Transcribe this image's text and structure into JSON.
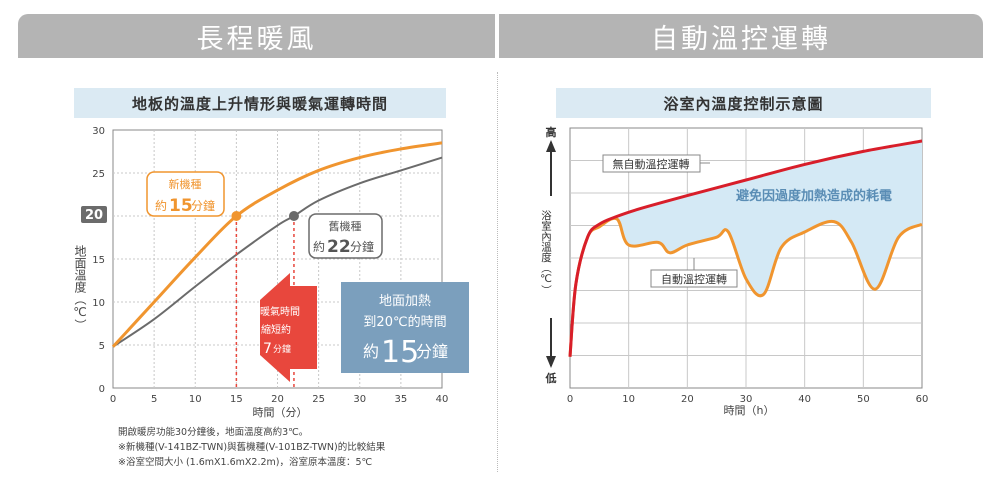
{
  "headers": {
    "left": "長程暖風",
    "right": "自動溫控運轉"
  },
  "left_chart": {
    "title": "地板的溫度上升情形與暖氣運轉時間",
    "ylabel": "地面溫度（℃）",
    "xlabel": "時間（分）",
    "x_ticks": [
      "0",
      "5",
      "10",
      "15",
      "20",
      "25",
      "30",
      "35",
      "40"
    ],
    "y_ticks": [
      "0",
      "5",
      "10",
      "15",
      "20",
      "25",
      "30"
    ],
    "highlight_tick": "20",
    "new_label_line1": "新機種",
    "new_label_prefix": "約",
    "new_label_number": "15",
    "new_label_suffix": "分鐘",
    "old_label_line1": "舊機種",
    "old_label_prefix": "約",
    "old_label_number": "22",
    "old_label_suffix": "分鐘",
    "arrow_line1": "暖氣時間",
    "arrow_line2": "縮短約",
    "arrow_number": "7",
    "arrow_unit": "分鐘",
    "box_line1": "地面加熱",
    "box_line2": "到20℃的時間",
    "box_prefix": "約",
    "box_number": "15",
    "box_suffix": "分鐘"
  },
  "right_chart": {
    "title": "浴室內溫度控制示意圖",
    "ylabel": "浴室內溫度（℃）",
    "y_high": "高",
    "y_low": "低",
    "xlabel": "時間（h）",
    "x_ticks": [
      "0",
      "10",
      "20",
      "30",
      "40",
      "50",
      "60"
    ],
    "label_no_control": "無自動溫控運轉",
    "label_auto": "自動溫控運轉",
    "label_saving": "避免因過度加熱造成的耗電"
  },
  "footnotes": [
    "開啟暖房功能30分鐘後，地面溫度高約3℃。",
    "※新機種(V-141BZ-TWN)與舊機種(V-101BZ-TWN)的比較結果",
    "※浴室空間大小 (1.6mX1.6mX2.2m)，浴室原本溫度：5℃"
  ],
  "colors": {
    "header_bg": "#b4b4b4",
    "subhead_bg": "#dbeaf3",
    "new_model": "#f0952f",
    "old_model": "#6b6b6b",
    "red_line": "#d81e2a",
    "fill_saving": "#d4e9f5",
    "info_box": "#7b9fbd",
    "arrow": "#e8473d"
  },
  "chart_data": [
    {
      "type": "line",
      "title": "地板的溫度上升情形與暖氣運轉時間",
      "xlabel": "時間（分）",
      "ylabel": "地面溫度（℃）",
      "xlim": [
        0,
        40
      ],
      "ylim": [
        0,
        30
      ],
      "series": [
        {
          "name": "新機種",
          "x": [
            0,
            5,
            10,
            15,
            20,
            25,
            30,
            35,
            40
          ],
          "y": [
            4.8,
            10.0,
            15.2,
            20.0,
            23.0,
            25.3,
            26.8,
            27.8,
            28.5
          ]
        },
        {
          "name": "舊機種",
          "x": [
            0,
            5,
            10,
            15,
            20,
            22,
            25,
            30,
            35,
            40
          ],
          "y": [
            4.8,
            8.0,
            11.8,
            15.5,
            18.9,
            20.0,
            21.8,
            23.8,
            25.3,
            26.8
          ]
        }
      ],
      "markers": [
        {
          "x": 15,
          "y": 20
        },
        {
          "x": 22,
          "y": 20
        }
      ]
    },
    {
      "type": "line",
      "title": "浴室內溫度控制示意圖",
      "xlabel": "時間（h）",
      "ylabel": "浴室內溫度（℃）",
      "xlim": [
        0,
        60
      ],
      "series": [
        {
          "name": "無自動溫控運轉",
          "x": [
            0,
            1,
            3,
            5,
            8,
            12,
            20,
            30,
            40,
            50,
            60
          ],
          "y": [
            0.12,
            0.4,
            0.58,
            0.63,
            0.66,
            0.69,
            0.74,
            0.8,
            0.86,
            0.91,
            0.95
          ]
        },
        {
          "name": "自動溫控運轉",
          "x": [
            0,
            1,
            3,
            5,
            8,
            10,
            15,
            17,
            20,
            25,
            27,
            30,
            33,
            36,
            40,
            45,
            48,
            52,
            56,
            60
          ],
          "y": [
            0.12,
            0.4,
            0.58,
            0.62,
            0.65,
            0.55,
            0.56,
            0.52,
            0.55,
            0.58,
            0.6,
            0.42,
            0.36,
            0.54,
            0.6,
            0.64,
            0.56,
            0.38,
            0.58,
            0.63
          ]
        }
      ]
    }
  ]
}
